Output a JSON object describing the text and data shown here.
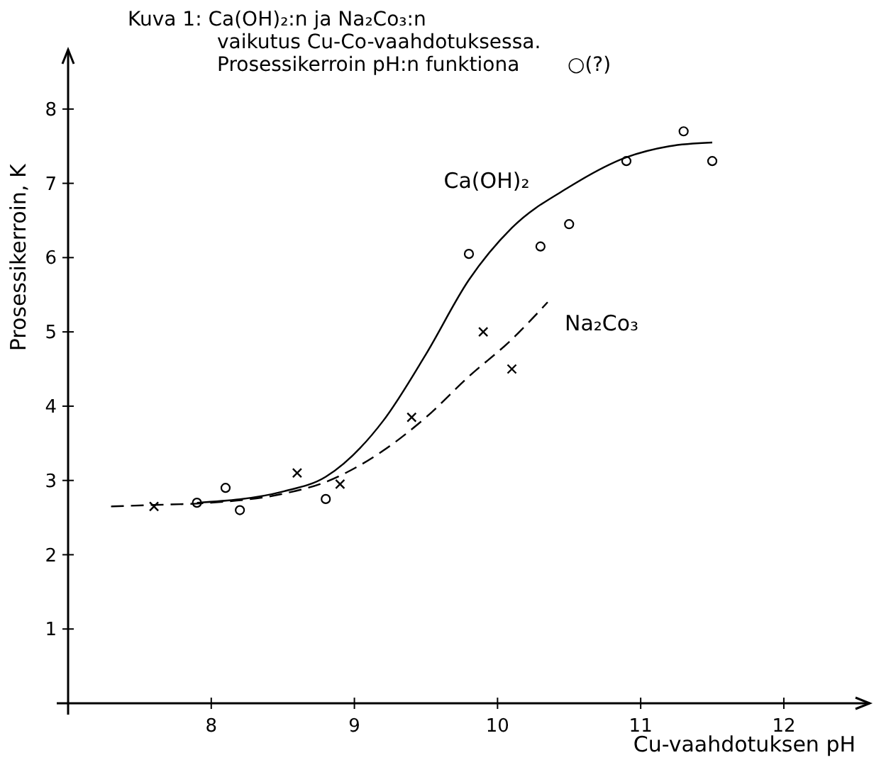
{
  "chart_data": {
    "type": "scatter",
    "title": "Kuva 1: Ca(OH)₂:n ja Na₂Co₃:n vaikutus Cu-Co-vaahdotuksessa. Prosessikerroin pH:n funktiona",
    "xlabel": "Cu-vaahdotuksen pH",
    "ylabel": "Prosessikerroin, K",
    "annotations": [
      "○(?)"
    ],
    "xlim": [
      7,
      12.6
    ],
    "ylim": [
      0,
      8.8
    ],
    "xticks": [
      8,
      9,
      10,
      11,
      12
    ],
    "yticks": [
      1,
      2,
      3,
      4,
      5,
      6,
      7,
      8
    ],
    "grid": false,
    "series": [
      {
        "marker": "circle",
        "color": "#000000",
        "x": [
          7.9,
          8.1,
          8.2,
          8.8,
          9.8,
          10.3,
          10.5,
          10.9,
          11.3,
          11.5
        ],
        "values": [
          2.7,
          2.9,
          2.6,
          2.75,
          6.05,
          6.15,
          6.45,
          7.3,
          7.7,
          7.3
        ]
      },
      {
        "marker": "cross",
        "color": "#000000",
        "x": [
          7.6,
          8.6,
          8.9,
          9.4,
          9.9,
          10.1
        ],
        "values": [
          2.65,
          3.1,
          2.95,
          3.85,
          5.0,
          4.5
        ]
      },
      {
        "type": "line",
        "name": "Ca(OH)₂",
        "line_style": "solid",
        "color": "#000000",
        "x": [
          7.9,
          8.5,
          8.8,
          9.2,
          9.5,
          9.8,
          10.1,
          10.5,
          10.9,
          11.2,
          11.5
        ],
        "values": [
          2.7,
          2.85,
          3.05,
          3.8,
          4.7,
          5.7,
          6.4,
          6.95,
          7.35,
          7.5,
          7.55
        ]
      },
      {
        "type": "line",
        "name": "Na₂Co₃",
        "line_style": "dashed",
        "color": "#000000",
        "x": [
          7.3,
          7.6,
          8.0,
          8.5,
          8.8,
          9.2,
          9.5,
          9.8,
          10.1,
          10.35
        ],
        "values": [
          2.65,
          2.67,
          2.7,
          2.82,
          2.98,
          3.4,
          3.85,
          4.4,
          4.9,
          5.4
        ]
      }
    ]
  }
}
